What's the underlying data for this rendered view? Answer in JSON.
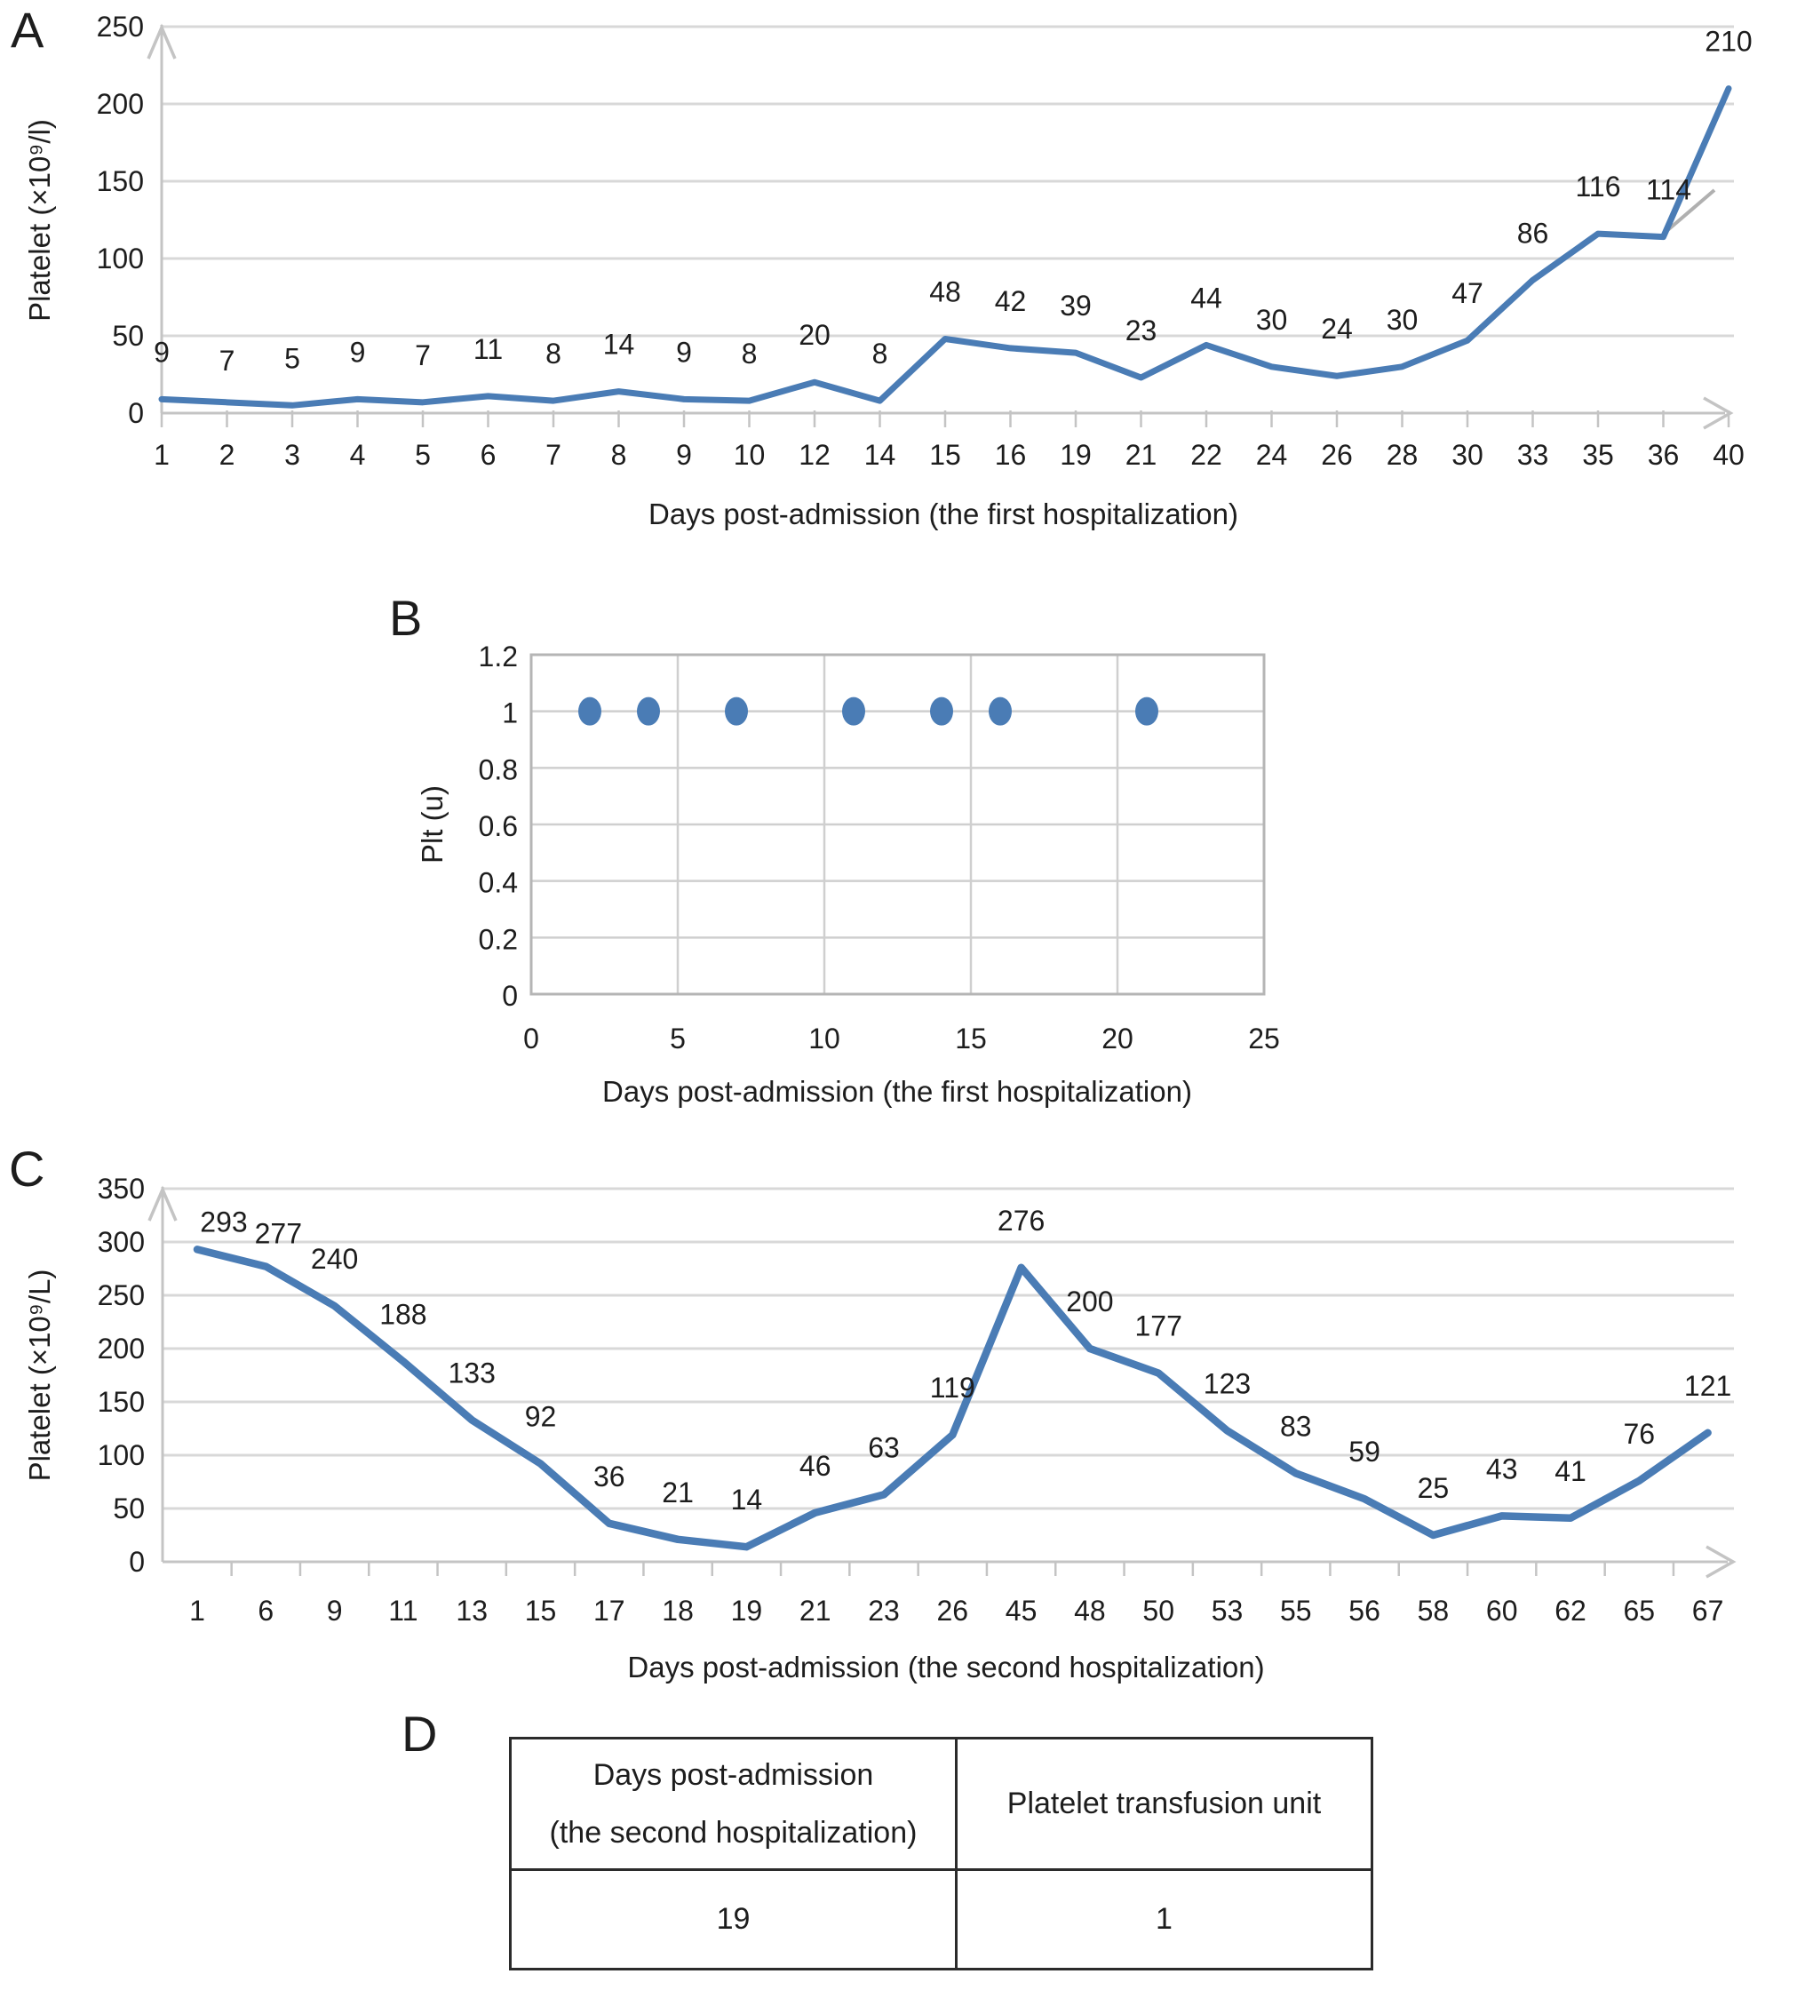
{
  "panels": [
    "A",
    "B",
    "C",
    "D"
  ],
  "colors": {
    "series_blue": "#4a7cb5",
    "grid": "#d8d8d8",
    "axis": "#c4c4c4",
    "text": "#1d1d1d",
    "artifact_gray": "#b0b0b0"
  },
  "chart_data": [
    {
      "id": "A",
      "type": "line",
      "categories": [
        1,
        2,
        3,
        4,
        5,
        6,
        7,
        8,
        9,
        10,
        12,
        14,
        15,
        16,
        19,
        21,
        22,
        24,
        26,
        28,
        30,
        33,
        35,
        36,
        40
      ],
      "values": [
        9,
        7,
        5,
        9,
        7,
        11,
        8,
        14,
        9,
        8,
        20,
        8,
        48,
        42,
        39,
        23,
        44,
        30,
        24,
        30,
        47,
        86,
        116,
        114,
        210
      ],
      "xlabel": "Days post-admission (the first hospitalization)",
      "ylabel": "Platelet (×10⁹/l)",
      "ylim": [
        0,
        250
      ],
      "yticks": [
        0,
        50,
        100,
        150,
        200,
        250
      ],
      "grid": true,
      "legend": "none",
      "data_labels": true
    },
    {
      "id": "B",
      "type": "scatter",
      "x": [
        2,
        4,
        7,
        11,
        14,
        16,
        21
      ],
      "y": [
        1,
        1,
        1,
        1,
        1,
        1,
        1
      ],
      "xlabel": "Days post-admission (the first hospitalization)",
      "ylabel": "Plt (u)",
      "xlim": [
        0,
        25
      ],
      "xticks": [
        0,
        5,
        10,
        15,
        20,
        25
      ],
      "ylim": [
        0,
        1.2
      ],
      "yticks": [
        0,
        0.2,
        0.4,
        0.6,
        0.8,
        1,
        1.2
      ],
      "grid": true,
      "legend": "none"
    },
    {
      "id": "C",
      "type": "line",
      "categories": [
        1,
        6,
        9,
        11,
        13,
        15,
        17,
        18,
        19,
        21,
        23,
        26,
        45,
        48,
        50,
        53,
        55,
        56,
        58,
        60,
        62,
        65,
        67
      ],
      "values": [
        293,
        277,
        240,
        188,
        133,
        92,
        36,
        21,
        14,
        46,
        63,
        119,
        276,
        200,
        177,
        123,
        83,
        59,
        25,
        43,
        41,
        76,
        121
      ],
      "xlabel": "Days post-admission (the second hospitalization)",
      "ylabel": "Platelet (×10⁹/L)",
      "ylim": [
        0,
        350
      ],
      "yticks": [
        0,
        50,
        100,
        150,
        200,
        250,
        300,
        350
      ],
      "grid": true,
      "legend": "none",
      "data_labels": true
    },
    {
      "id": "D",
      "type": "table",
      "columns": [
        "Days post-admission (the second hospitalization)",
        "Platelet transfusion unit"
      ],
      "rows": [
        [
          "19",
          "1"
        ]
      ]
    }
  ],
  "table": {
    "col1_header_line1": "Days post-admission",
    "col1_header_line2": "(the second hospitalization)",
    "col2_header": "Platelet transfusion unit",
    "row_day": "19",
    "row_unit": "1"
  }
}
